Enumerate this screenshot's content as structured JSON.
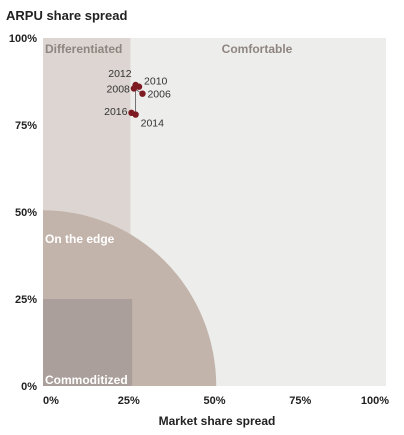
{
  "chart_data": {
    "type": "scatter",
    "title": "ARPU share spread",
    "xlabel": "Market share spread",
    "ylabel": "",
    "xlim": [
      0,
      100
    ],
    "ylim": [
      0,
      100
    ],
    "x_ticks": [
      "0%",
      "25%",
      "50%",
      "75%",
      "100%"
    ],
    "y_ticks": [
      "0%",
      "25%",
      "50%",
      "75%",
      "100%"
    ],
    "zones": {
      "differentiated": "Differentiated",
      "comfortable": "Comfortable",
      "on_the_edge": "On the edge",
      "commoditized": "Commoditized"
    },
    "points": [
      {
        "label": "2006",
        "x": 29,
        "y": 84
      },
      {
        "label": "2008",
        "x": 26.5,
        "y": 85.5
      },
      {
        "label": "2010",
        "x": 28,
        "y": 86
      },
      {
        "label": "2012",
        "x": 27,
        "y": 86.5
      },
      {
        "label": "2014",
        "x": 27,
        "y": 78
      },
      {
        "label": "2016",
        "x": 25.8,
        "y": 78.5
      }
    ],
    "colors": {
      "point": "#7d1a22",
      "differentiated_bg": "#ddd5d1",
      "comfortable_bg": "#ededec",
      "edge_circle": "#c2b4aa",
      "commoditized_bg": "#aa9f9a"
    }
  }
}
